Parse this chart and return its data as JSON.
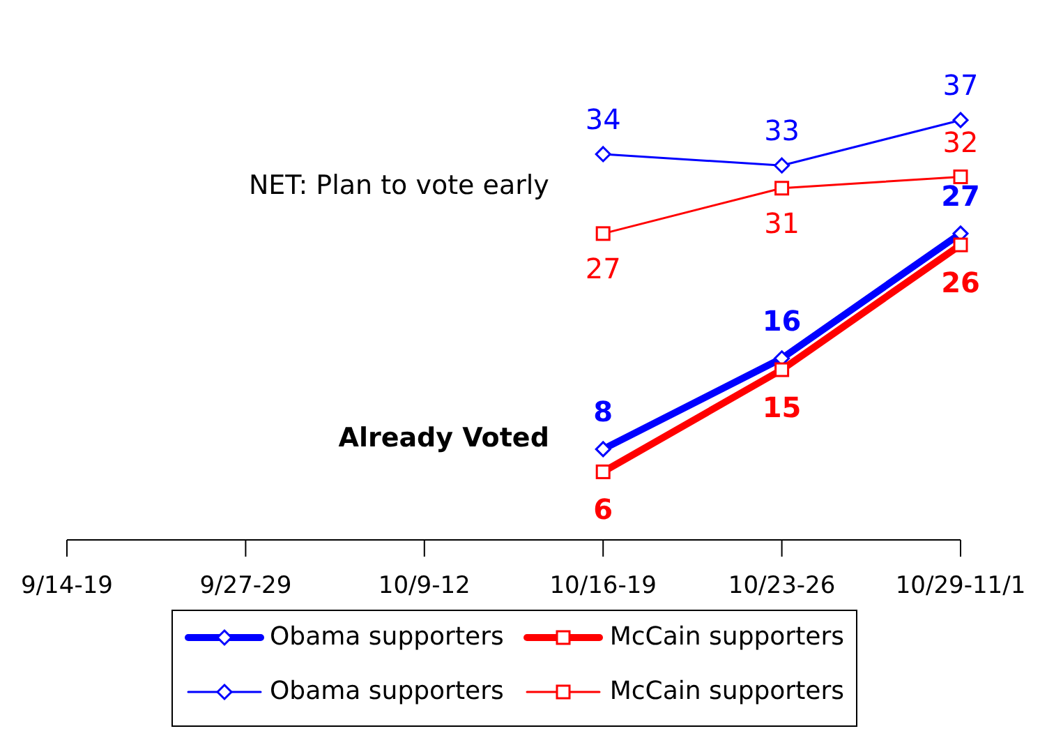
{
  "chart_data": {
    "type": "line",
    "categories": [
      "9/14-19",
      "9/27-29",
      "10/9-12",
      "10/16-19",
      "10/23-26",
      "10/29-11/1"
    ],
    "series": [
      {
        "name": "Obama supporters",
        "color": "#0000ff",
        "marker": "diamond",
        "values": [
          null,
          null,
          null,
          8,
          16,
          27
        ]
      },
      {
        "name": "McCain supporters",
        "color": "#ff0000",
        "marker": "square",
        "values": [
          null,
          null,
          null,
          6,
          15,
          26
        ]
      },
      {
        "name": "Obama supporters",
        "color": "#0000ff",
        "marker": "diamond",
        "values": [
          null,
          null,
          null,
          34,
          33,
          37
        ]
      },
      {
        "name": "McCain supporters",
        "color": "#ff0000",
        "marker": "square",
        "values": [
          null,
          null,
          null,
          27,
          31,
          32
        ]
      }
    ],
    "data_labels": true,
    "annotations": [
      "NET: Plan to vote early",
      "Already Voted"
    ],
    "legend": "bottom",
    "grid": false
  }
}
